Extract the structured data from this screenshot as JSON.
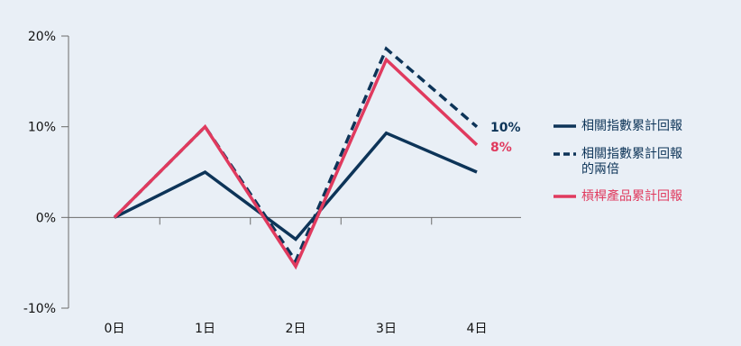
{
  "chart_data": {
    "type": "line",
    "title": "",
    "xlabel": "",
    "ylabel": "",
    "categories": [
      "0日",
      "1日",
      "2日",
      "3日",
      "4日"
    ],
    "ylim": [
      -10,
      20
    ],
    "yticks": [
      -10,
      0,
      10,
      20
    ],
    "ytick_labels": [
      "-10%",
      "0%",
      "10%",
      "20%"
    ],
    "grid": false,
    "legend_position": "right",
    "series": [
      {
        "name": "相關指數累計回報",
        "values": [
          0,
          5,
          -2.4,
          9.3,
          5
        ],
        "color": "#0d3458",
        "dash": "solid"
      },
      {
        "name": "相關指數累計回報的兩倍",
        "values": [
          0,
          10,
          -4.8,
          18.6,
          10
        ],
        "color": "#0d3458",
        "dash": "dashed"
      },
      {
        "name": "槓桿產品累計回報",
        "values": [
          0,
          10,
          -5.4,
          17.4,
          8
        ],
        "color": "#e03a5e",
        "dash": "solid"
      }
    ],
    "end_labels": [
      {
        "text": "10%",
        "color": "#0d3458"
      },
      {
        "text": "8%",
        "color": "#e03a5e"
      }
    ]
  },
  "legend": {
    "items": [
      {
        "label_lines": [
          "相關指數累計回報"
        ],
        "color": "#0d3458",
        "dash": "solid"
      },
      {
        "label_lines": [
          "相關指數累計回報",
          "的兩倍"
        ],
        "color": "#0d3458",
        "dash": "dashed"
      },
      {
        "label_lines": [
          "槓桿產品累計回報"
        ],
        "color": "#e03a5e",
        "dash": "solid"
      }
    ]
  }
}
